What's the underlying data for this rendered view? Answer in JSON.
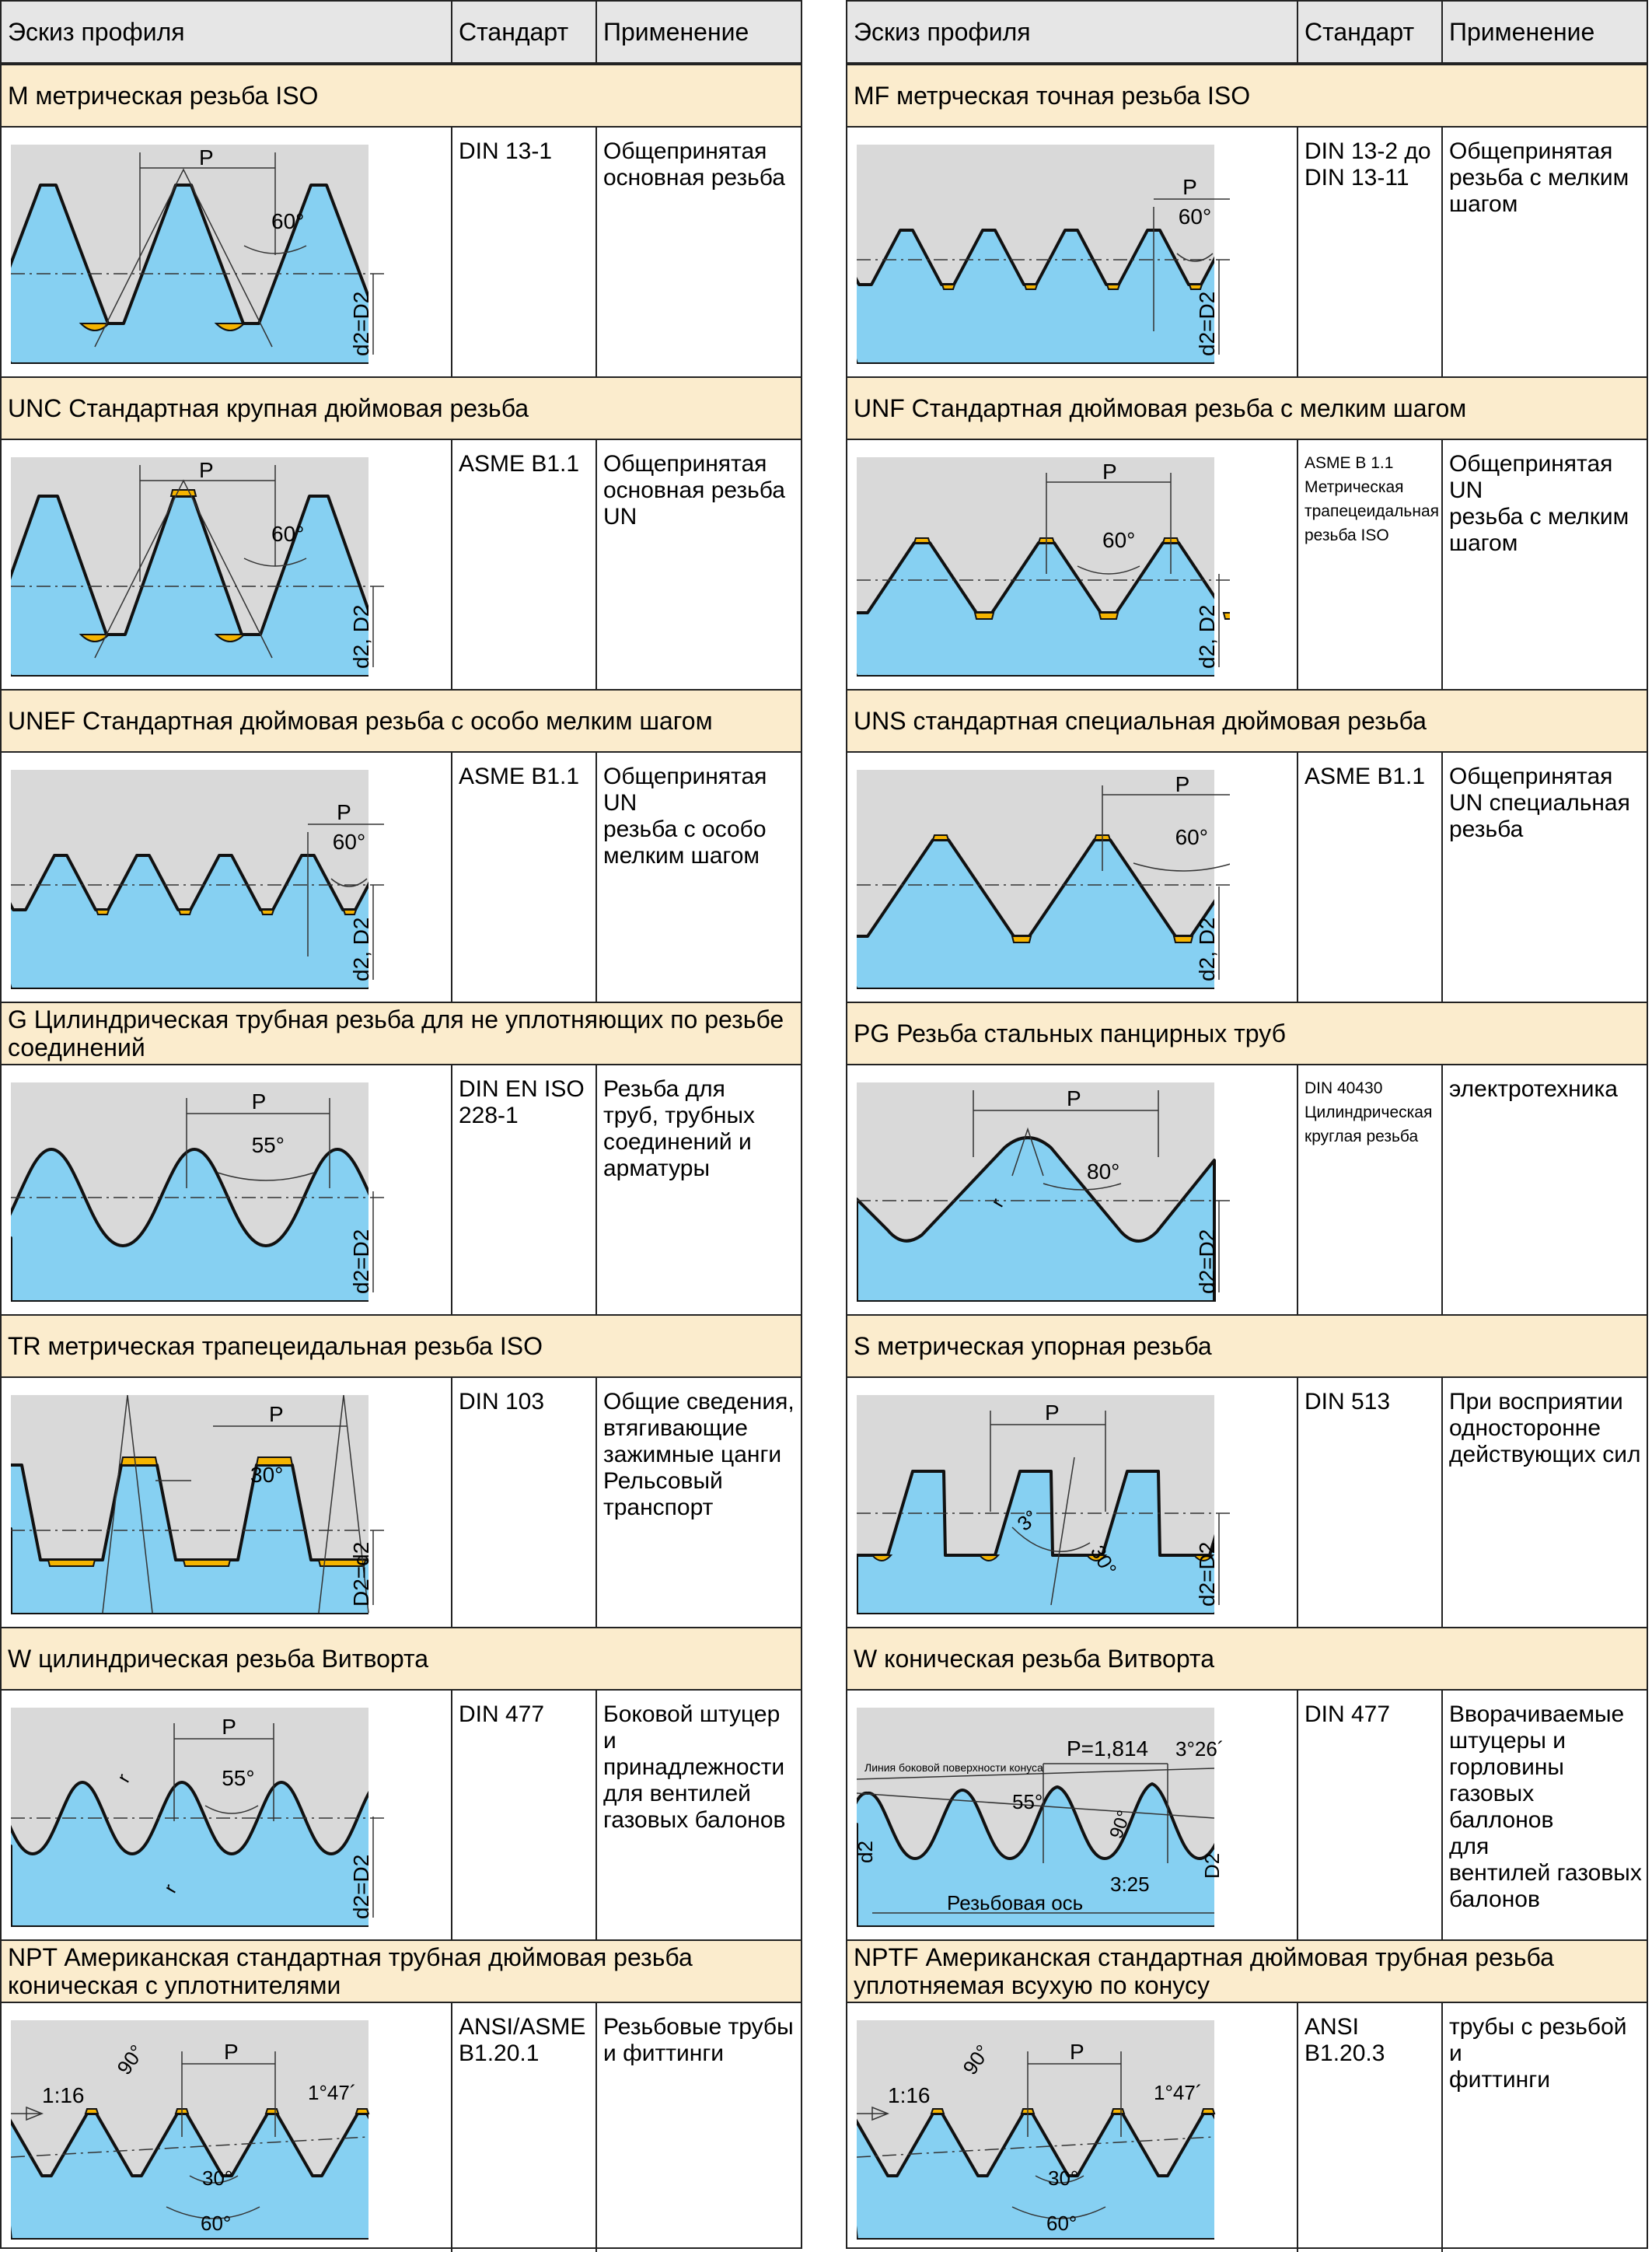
{
  "header": {
    "col_profile": "Эскиз профиля",
    "col_standard": "Стандарт",
    "col_application": "Применение"
  },
  "left": [
    {
      "title": "M метрическая резьба ISO",
      "standard": "DIN 13-1",
      "application": "Общепринятая\nосновная резьба",
      "fig": {
        "pitch": "P",
        "angle": "60°",
        "dia": "d2=D2"
      }
    },
    {
      "title": "UNC Стандартная крупная дюймовая резьба",
      "standard": "ASME B1.1",
      "application": "Общепринятая\nосновная резьба\nUN",
      "fig": {
        "pitch": "P",
        "angle": "60°",
        "dia": "d2, D2"
      }
    },
    {
      "title": "UNEF Стандартная дюймовая резьба с особо мелким шагом",
      "standard": "ASME B1.1",
      "application": "Общепринятая UN\nрезьба с особо\nмелким шагом",
      "fig": {
        "pitch": "P",
        "angle": "60°",
        "dia": "d2, D2"
      }
    },
    {
      "title": "G Цилиндрическая трубная резьба для не уплотняющих по резьбе соединений",
      "standard": "DIN EN ISO\n228-1",
      "application": "Резьба для\nтруб, трубных\nсоединений и\nарматуры",
      "fig": {
        "pitch": "P",
        "angle": "55°",
        "dia": "d2=D2"
      }
    },
    {
      "title": "TR метрическая трапецеидальная резьба ISO",
      "standard": "DIN 103",
      "application": "Общие сведения,\nвтягивающие\nзажимные цанги\nРельсовый\nтранспорт",
      "fig": {
        "pitch": "P",
        "angle": "30°",
        "dia": "D2=d2"
      }
    },
    {
      "title": "W цилиндрическая резьба Витворта",
      "standard": "DIN 477",
      "application": "Боковой штуцер и\nпринадлежности\nдля вентилей\nгазовых балонов",
      "fig": {
        "pitch": "P",
        "angle": "55°",
        "dia": "d2=D2",
        "r": "r"
      }
    },
    {
      "title": "NPT Американская стандартная трубная дюймовая резьба коническая с уплотнителями",
      "standard": "ANSI/ASME\nB1.20.1",
      "application": "Резьбовые трубы\nи фиттинги",
      "fig": {
        "pitch": "P",
        "taper": "1:16",
        "a90": "90°",
        "a147": "1°47´",
        "a30": "30°",
        "a60": "60°"
      }
    }
  ],
  "right": [
    {
      "title": "MF метрческая точная резьба ISO",
      "standard": "DIN 13-2 до\nDIN 13-11",
      "application": "Общепринятая\nрезьба с мелким\nшагом",
      "fig": {
        "pitch": "P",
        "angle": "60°",
        "dia": "d2=D2"
      }
    },
    {
      "title": "UNF Стандартная дюймовая резьба с мелким шагом",
      "standard": "ASME B 1.1\nМетрическая\nтрапецеидальная\nрезьба ISO",
      "application": "Общепринятая UN\nрезьба с мелким\nшагом",
      "fig": {
        "pitch": "P",
        "angle": "60°",
        "dia": "d2, D2"
      }
    },
    {
      "title": "UNS стандартная специальная дюймовая резьба",
      "standard": "ASME B1.1",
      "application": "Общепринятая\nUN специальная\nрезьба",
      "fig": {
        "pitch": "P",
        "angle": "60°",
        "dia": "d2, D2"
      }
    },
    {
      "title": "PG Резьба стальных панцирных труб",
      "standard": "DIN 40430\nЦилиндрическая\nкруглая резьба",
      "application": "электротехника",
      "fig": {
        "pitch": "P",
        "angle": "80°",
        "dia": "d2=D2",
        "r": "r"
      }
    },
    {
      "title": "S метрическая упорная резьба",
      "standard": "DIN 513",
      "application": "При восприятии\nодносторонне\nдействующих сил",
      "fig": {
        "pitch": "P",
        "a3": "3°",
        "a30": "30°",
        "dia": "d2=D2"
      }
    },
    {
      "title": "W коническая резьба Витворта",
      "standard": "DIN 477",
      "application": "Вворачиваемые\nштуцеры и\nгорловины\nгазовых баллонов\nдля\nвентилей газовых\nбалонов",
      "fig": {
        "pitch": "P=1,814",
        "a326": "3°26´",
        "flank": "Линия боковой поверхности конуса",
        "a55": "55°",
        "a90": "90°",
        "taper": "3:25",
        "axis": "Резьбовая ось",
        "d2": "d2",
        "D2": "D2"
      }
    },
    {
      "title": "NPTF Американская стандартная дюймовая трубная резьба уплотняемая всухую по конусу",
      "standard": "ANSI B1.20.3",
      "application": "трубы с резьбой и\nфиттинги",
      "fig": {
        "pitch": "P",
        "taper": "1:16",
        "a90": "90°",
        "a147": "1°47´",
        "a30": "30°",
        "a60": "60°"
      }
    }
  ],
  "colors": {
    "gray": "#d9d9d9",
    "blue": "#86d0f2",
    "yellow": "#f5b400",
    "band": "#fbeccd",
    "header": "#e6e6e6"
  }
}
